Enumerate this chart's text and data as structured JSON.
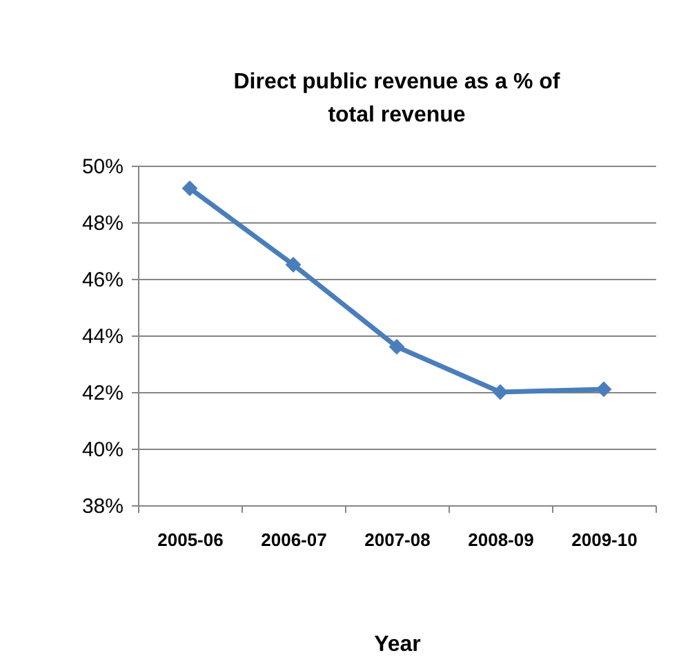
{
  "chart_data": {
    "type": "line",
    "title": "Direct public revenue as a % of total revenue",
    "xlabel": "Year",
    "categories": [
      "2005-06",
      "2006-07",
      "2007-08",
      "2008-09",
      "2009-10"
    ],
    "series": [
      {
        "color": "#4a7ebb",
        "values": [
          49.2,
          46.5,
          43.6,
          42.0,
          42.1
        ]
      }
    ],
    "ylim": [
      38,
      50
    ],
    "yticks": [
      {
        "value": 38,
        "label": "38%"
      },
      {
        "value": 40,
        "label": "40%"
      },
      {
        "value": 42,
        "label": "42%"
      },
      {
        "value": 44,
        "label": "44%"
      },
      {
        "value": 46,
        "label": "46%"
      },
      {
        "value": 48,
        "label": "48%"
      },
      {
        "value": 50,
        "label": "50%"
      }
    ],
    "grid": "y",
    "marker": "diamond",
    "line_style": "solid"
  }
}
